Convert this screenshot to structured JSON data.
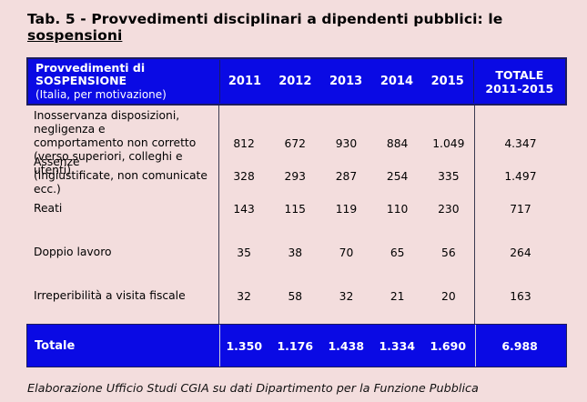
{
  "page": {
    "title_prefix": "Tab. 5 - Provvedimenti disciplinari a dipendenti pubblici: le ",
    "title_emph": "sospensioni",
    "footer_note": "Elaborazione Ufficio Studi CGIA su dati Dipartimento per la Funzione Pubblica"
  },
  "colors": {
    "page_background": "#f3dddd",
    "table_blue": "#0a0ae4",
    "table_border_navy": "#1c1c5e",
    "body_divider": "#3a3a50",
    "total_divider_light": "#cfcfd8",
    "header_text": "#ffffff",
    "body_text": "#000000"
  },
  "table": {
    "header": {
      "label_line1": "Provvedimenti di",
      "label_line2": "SOSPENSIONE",
      "label_line3": "(Italia, per motivazione)",
      "years": [
        "2011",
        "2012",
        "2013",
        "2014",
        "2015"
      ],
      "total_line1": "TOTALE",
      "total_line2": "2011-2015"
    },
    "rows": [
      {
        "label_lines": [
          "Inosservanza disposizioni, negligenza e",
          "comportamento non corretto",
          "(verso superiori, colleghi e utenti)"
        ],
        "values": [
          "812",
          "672",
          "930",
          "884",
          "1.049"
        ],
        "total": "4.347"
      },
      {
        "label_lines": [
          "Assenze",
          "(ingiustificate, non comunicate ecc.)"
        ],
        "values": [
          "328",
          "293",
          "287",
          "254",
          "335"
        ],
        "total": "1.497"
      },
      {
        "label_lines": [
          "Reati"
        ],
        "values": [
          "143",
          "115",
          "119",
          "110",
          "230"
        ],
        "total": "717"
      },
      {
        "label_lines": [
          "Doppio lavoro"
        ],
        "values": [
          "35",
          "38",
          "70",
          "65",
          "56"
        ],
        "total": "264"
      },
      {
        "label_lines": [
          "Irreperibilità a visita fiscale"
        ],
        "values": [
          "32",
          "58",
          "32",
          "21",
          "20"
        ],
        "total": "163"
      }
    ],
    "total_row": {
      "label": "Totale",
      "values": [
        "1.350",
        "1.176",
        "1.438",
        "1.334",
        "1.690"
      ],
      "total": "6.988"
    }
  },
  "chart_data": {
    "type": "table",
    "title": "Tab. 5 - Provvedimenti disciplinari a dipendenti pubblici: le sospensioni",
    "columns": [
      "Provvedimenti di SOSPENSIONE (Italia, per motivazione)",
      "2011",
      "2012",
      "2013",
      "2014",
      "2015",
      "TOTALE 2011-2015"
    ],
    "rows": [
      [
        "Inosservanza disposizioni, negligenza e comportamento non corretto (verso superiori, colleghi e utenti)",
        812,
        672,
        930,
        884,
        1049,
        4347
      ],
      [
        "Assenze (ingiustificate, non comunicate ecc.)",
        328,
        293,
        287,
        254,
        335,
        1497
      ],
      [
        "Reati",
        143,
        115,
        119,
        110,
        230,
        717
      ],
      [
        "Doppio lavoro",
        35,
        38,
        70,
        65,
        56,
        264
      ],
      [
        "Irreperibilità a visita fiscale",
        32,
        58,
        32,
        21,
        20,
        163
      ],
      [
        "Totale",
        1350,
        1176,
        1438,
        1334,
        1690,
        6988
      ]
    ],
    "source_note": "Elaborazione Ufficio Studi CGIA su dati Dipartimento per la Funzione Pubblica"
  }
}
